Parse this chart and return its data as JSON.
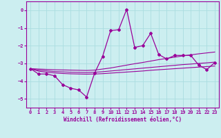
{
  "xlabel": "Windchill (Refroidissement éolien,°C)",
  "background_color": "#cceef0",
  "grid_color": "#aadde0",
  "line_color": "#990099",
  "x_values": [
    0,
    1,
    2,
    3,
    4,
    5,
    6,
    7,
    8,
    9,
    10,
    11,
    12,
    13,
    14,
    15,
    16,
    17,
    18,
    19,
    20,
    21,
    22,
    23
  ],
  "main_line": [
    -3.3,
    -3.6,
    -3.6,
    -3.7,
    -4.2,
    -4.4,
    -4.5,
    -4.9,
    -3.55,
    -2.6,
    -1.15,
    -1.1,
    0.05,
    -2.1,
    -2.0,
    -1.3,
    -2.5,
    -2.75,
    -2.55,
    -2.55,
    -2.55,
    -3.1,
    -3.35,
    -2.95
  ],
  "trend1": [
    -3.3,
    -3.32,
    -3.34,
    -3.36,
    -3.37,
    -3.38,
    -3.39,
    -3.4,
    -3.38,
    -3.32,
    -3.26,
    -3.18,
    -3.1,
    -3.02,
    -2.95,
    -2.87,
    -2.79,
    -2.72,
    -2.65,
    -2.58,
    -2.52,
    -2.46,
    -2.41,
    -2.36
  ],
  "trend2": [
    -3.3,
    -3.38,
    -3.42,
    -3.46,
    -3.48,
    -3.5,
    -3.51,
    -3.52,
    -3.5,
    -3.47,
    -3.43,
    -3.39,
    -3.35,
    -3.31,
    -3.27,
    -3.23,
    -3.19,
    -3.15,
    -3.11,
    -3.07,
    -3.04,
    -3.0,
    -2.97,
    -2.93
  ],
  "trend3": [
    -3.3,
    -3.44,
    -3.5,
    -3.54,
    -3.57,
    -3.59,
    -3.6,
    -3.61,
    -3.6,
    -3.58,
    -3.55,
    -3.52,
    -3.49,
    -3.46,
    -3.43,
    -3.39,
    -3.36,
    -3.33,
    -3.3,
    -3.27,
    -3.24,
    -3.21,
    -3.18,
    -3.15
  ],
  "ylim": [
    -5.5,
    0.5
  ],
  "yticks": [
    0,
    -1,
    -2,
    -3,
    -4,
    -5
  ],
  "xlim": [
    -0.5,
    23.5
  ],
  "tick_fontsize": 5.0,
  "label_fontsize": 5.5
}
